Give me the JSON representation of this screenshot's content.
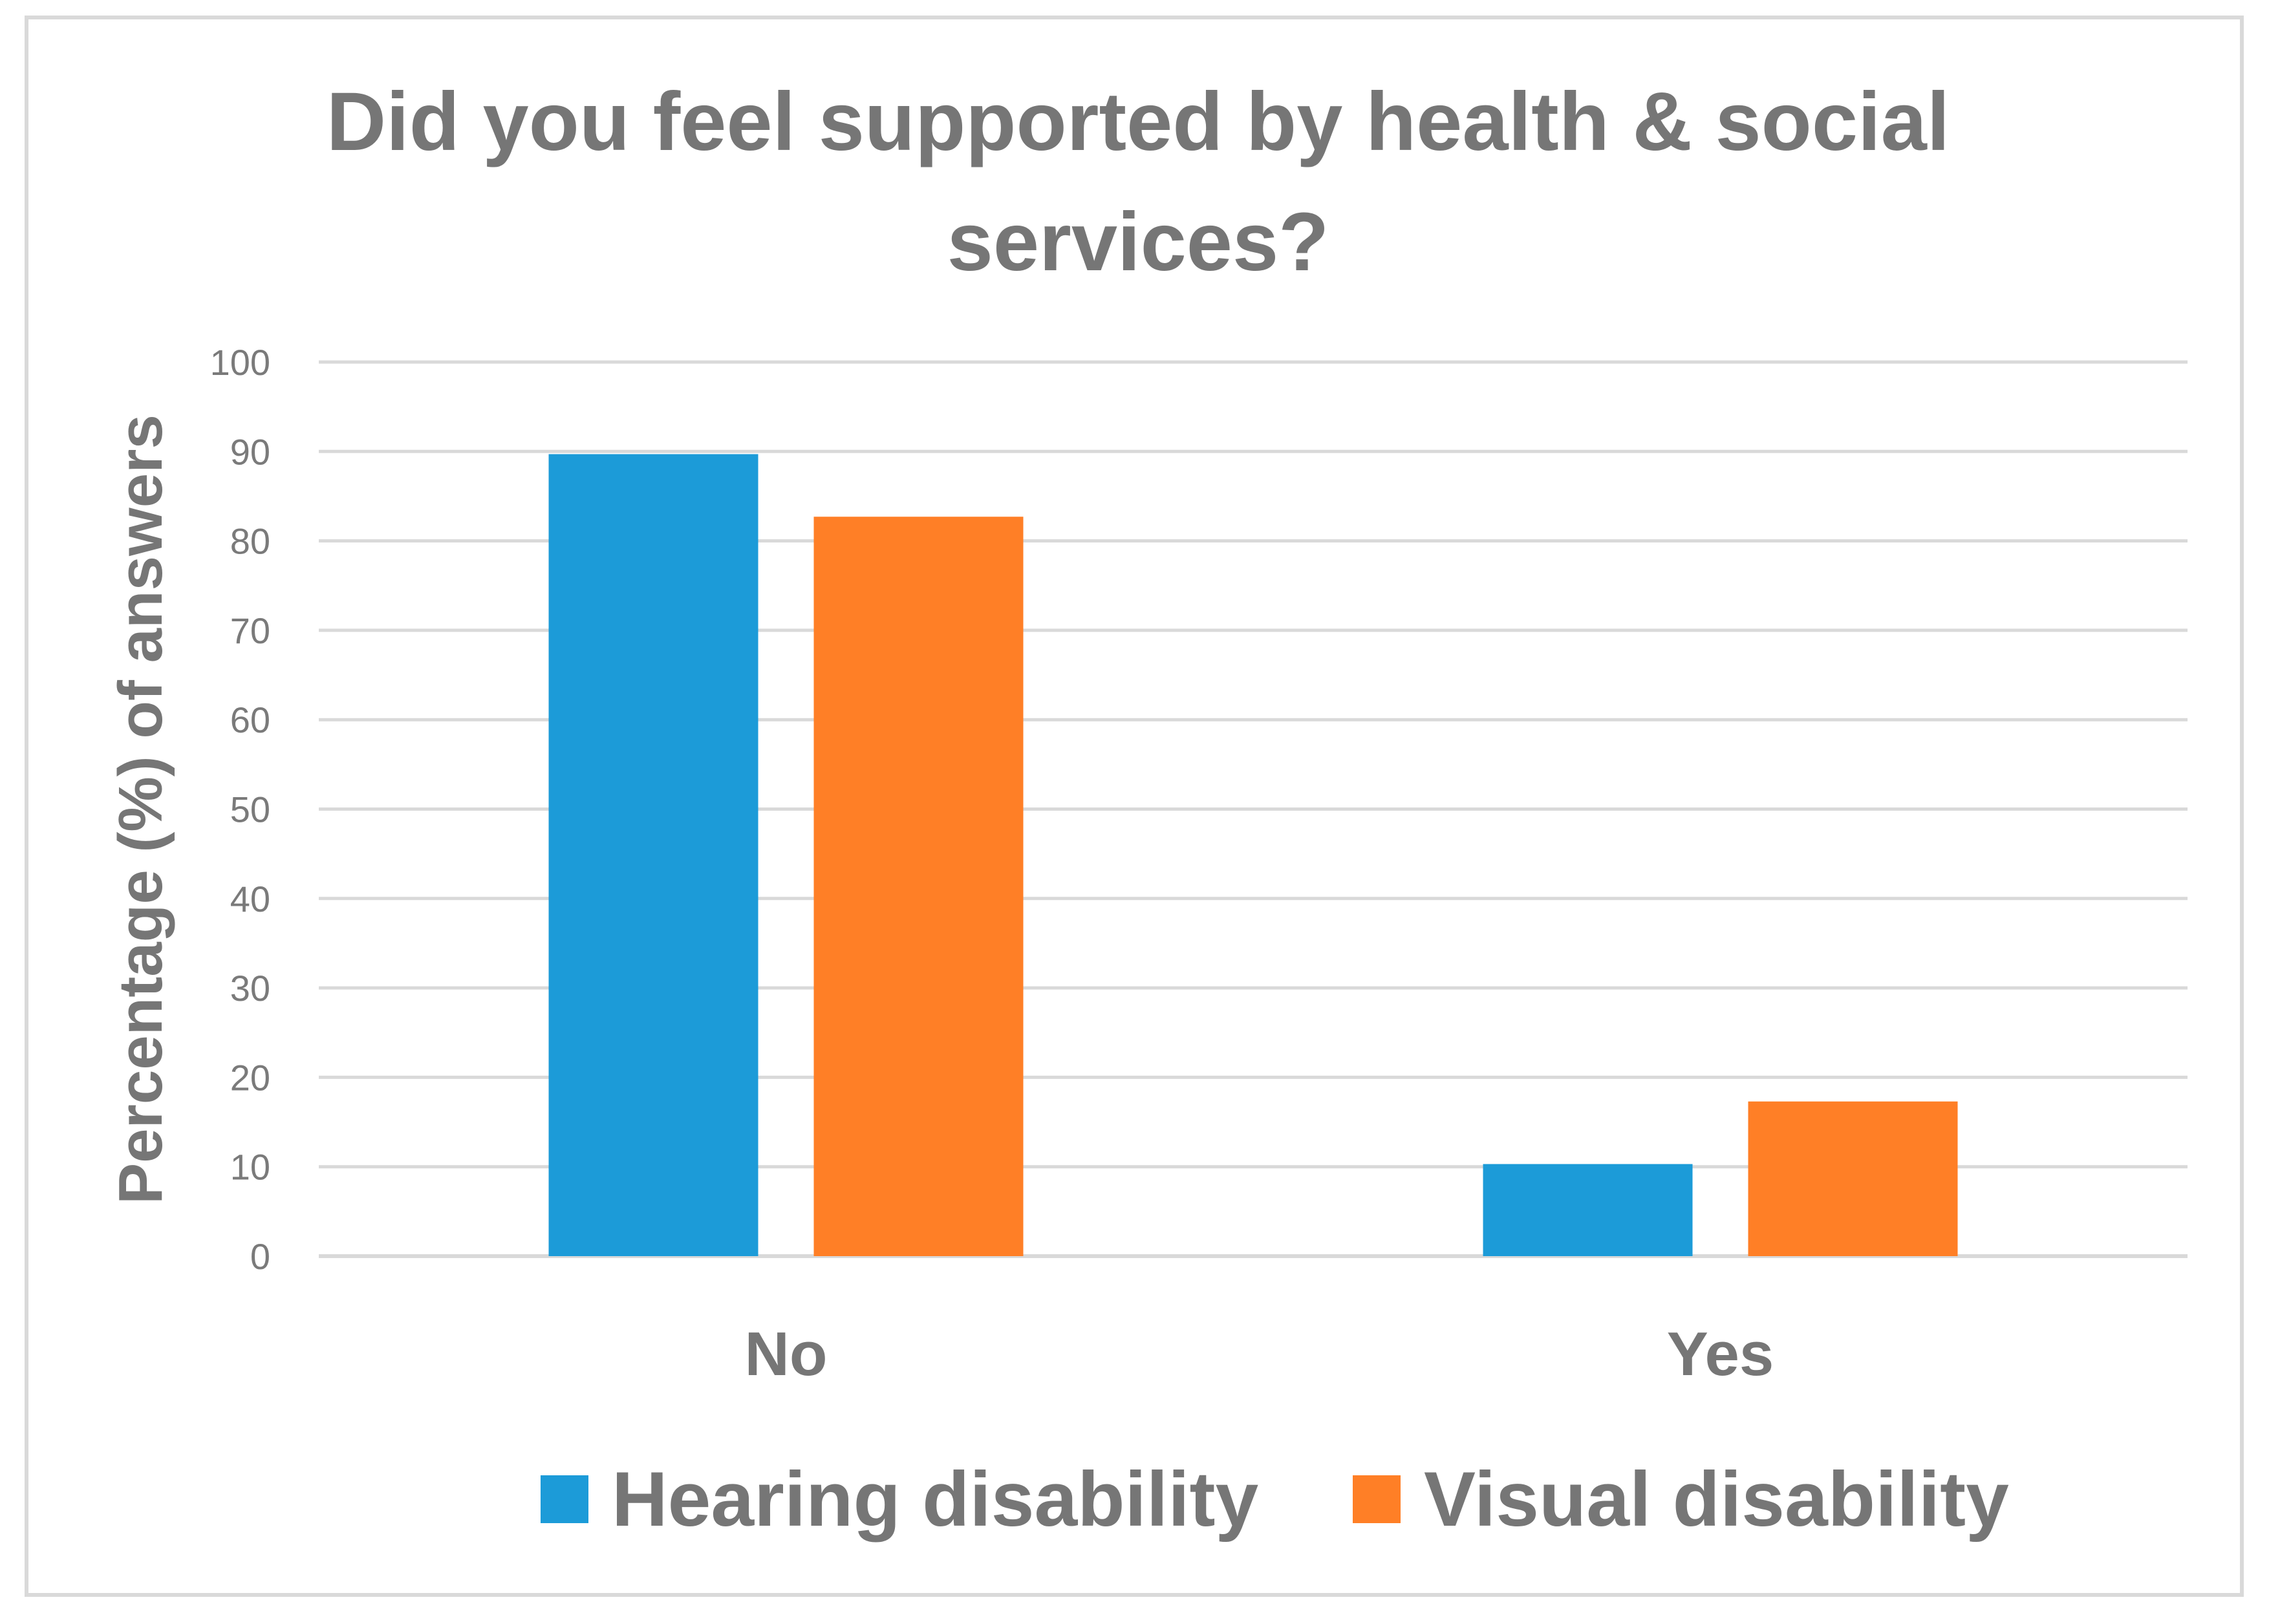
{
  "chart_data": {
    "type": "bar",
    "title_lines": [
      "Did you feel supported by health & social",
      "services?"
    ],
    "xlabel": "",
    "ylabel": "Percentage (%) of answers",
    "categories": [
      "No",
      "Yes"
    ],
    "series": [
      {
        "name": "Hearing disability",
        "color": "#1c9bd8",
        "values": [
          89.7,
          10.3
        ]
      },
      {
        "name": "Visual disability",
        "color": "#ff7f26",
        "values": [
          82.7,
          17.3
        ]
      }
    ],
    "ylim": [
      0,
      100
    ],
    "yticks": [
      0,
      10,
      20,
      30,
      40,
      50,
      60,
      70,
      80,
      90,
      100
    ],
    "grid": true,
    "legend_position": "bottom",
    "gridline_color": "#d9d9d9"
  }
}
